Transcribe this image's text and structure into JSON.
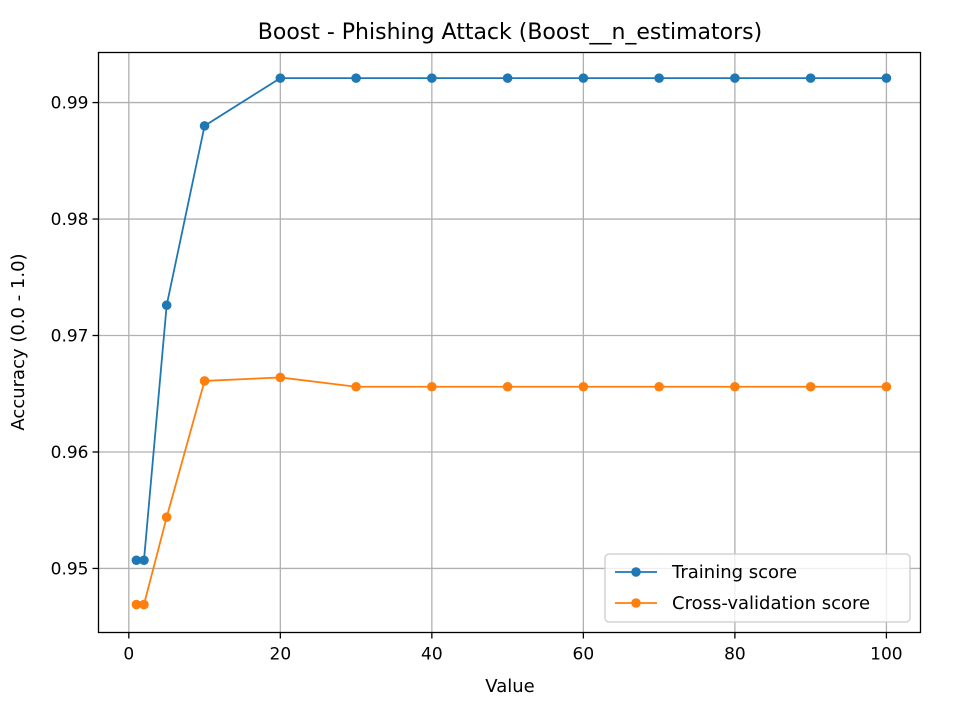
{
  "chart_data": {
    "type": "line",
    "title": "Boost - Phishing Attack (Boost__n_estimators)",
    "xlabel": "Value",
    "ylabel": "Accuracy (0.0 - 1.0)",
    "xlim": [
      -4,
      104.5
    ],
    "ylim": [
      0.9445,
      0.9943
    ],
    "xticks": [
      0,
      20,
      40,
      60,
      80,
      100
    ],
    "yticks": [
      0.95,
      0.96,
      0.97,
      0.98,
      0.99
    ],
    "ytick_labels": [
      "0.95",
      "0.96",
      "0.97",
      "0.98",
      "0.99"
    ],
    "grid": true,
    "legend_position": "lower-right",
    "x": [
      1,
      2,
      5,
      10,
      20,
      30,
      40,
      50,
      60,
      70,
      80,
      90,
      100
    ],
    "series": [
      {
        "name": "Training score",
        "color": "#1f77b4",
        "marker": "circle",
        "values": [
          0.9507,
          0.9507,
          0.9726,
          0.988,
          0.9921,
          0.9921,
          0.9921,
          0.9921,
          0.9921,
          0.9921,
          0.9921,
          0.9921,
          0.9921
        ]
      },
      {
        "name": "Cross-validation score",
        "color": "#ff7f0e",
        "marker": "circle",
        "values": [
          0.9469,
          0.9469,
          0.9544,
          0.9661,
          0.9664,
          0.9656,
          0.9656,
          0.9656,
          0.9656,
          0.9656,
          0.9656,
          0.9656,
          0.9656
        ]
      }
    ]
  }
}
